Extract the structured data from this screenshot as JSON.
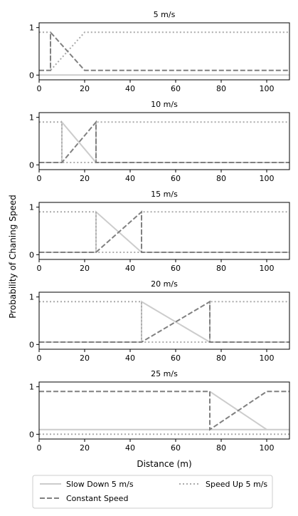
{
  "chart_data": {
    "type": "line",
    "ylabel": "Probability of Chaning Speed",
    "xlabel": "Distance (m)",
    "xlim": [
      0,
      110
    ],
    "ylim": [
      -0.1,
      1.1
    ],
    "x_ticks": [
      0,
      20,
      40,
      60,
      80,
      100
    ],
    "y_ticks": [
      0,
      1
    ],
    "grid": false,
    "legend": {
      "placement": "bottom",
      "entries": [
        {
          "label": "Slow Down 5 m/s",
          "style": "solid",
          "color": "#cccccc"
        },
        {
          "label": "Speed Up 5 m/s",
          "style": "dotted",
          "color": "#aaaaaa"
        },
        {
          "label": "Constant Speed",
          "style": "dashed",
          "color": "#808080"
        }
      ]
    },
    "panels": [
      {
        "title": "5 m/s",
        "series": [
          {
            "name": "Slow Down 5 m/s",
            "x": [
              0,
              110
            ],
            "y": [
              0,
              0
            ]
          },
          {
            "name": "Speed Up 5 m/s",
            "x": [
              0,
              5,
              5,
              20,
              110
            ],
            "y": [
              0.9,
              0.9,
              0.1,
              0.9,
              0.9
            ]
          },
          {
            "name": "Constant Speed",
            "x": [
              0,
              5,
              5,
              20,
              110
            ],
            "y": [
              0.1,
              0.1,
              0.9,
              0.1,
              0.1
            ]
          }
        ]
      },
      {
        "title": "10 m/s",
        "series": [
          {
            "name": "Slow Down 5 m/s",
            "x": [
              0,
              10,
              10,
              25,
              110
            ],
            "y": [
              0.05,
              0.05,
              0.9,
              0.05,
              0.05
            ]
          },
          {
            "name": "Speed Up 5 m/s",
            "x": [
              0,
              10,
              10,
              25,
              25,
              110
            ],
            "y": [
              0.9,
              0.9,
              0.05,
              0.05,
              0.9,
              0.9
            ]
          },
          {
            "name": "Constant Speed",
            "x": [
              0,
              10,
              25,
              25,
              110
            ],
            "y": [
              0.05,
              0.05,
              0.9,
              0.05,
              0.05
            ]
          }
        ]
      },
      {
        "title": "15 m/s",
        "series": [
          {
            "name": "Slow Down 5 m/s",
            "x": [
              0,
              25,
              25,
              45,
              110
            ],
            "y": [
              0.05,
              0.05,
              0.9,
              0.05,
              0.05
            ]
          },
          {
            "name": "Speed Up 5 m/s",
            "x": [
              0,
              25,
              25,
              45,
              45,
              110
            ],
            "y": [
              0.9,
              0.9,
              0.05,
              0.05,
              0.9,
              0.9
            ]
          },
          {
            "name": "Constant Speed",
            "x": [
              0,
              25,
              45,
              45,
              110
            ],
            "y": [
              0.05,
              0.05,
              0.9,
              0.05,
              0.05
            ]
          }
        ]
      },
      {
        "title": "20 m/s",
        "series": [
          {
            "name": "Slow Down 5 m/s",
            "x": [
              0,
              45,
              45,
              75,
              110
            ],
            "y": [
              0.05,
              0.05,
              0.9,
              0.05,
              0.05
            ]
          },
          {
            "name": "Speed Up 5 m/s",
            "x": [
              0,
              45,
              45,
              75,
              75,
              110
            ],
            "y": [
              0.9,
              0.9,
              0.05,
              0.05,
              0.9,
              0.9
            ]
          },
          {
            "name": "Constant Speed",
            "x": [
              0,
              45,
              75,
              75,
              110
            ],
            "y": [
              0.05,
              0.05,
              0.9,
              0.05,
              0.05
            ]
          }
        ]
      },
      {
        "title": "25 m/s",
        "series": [
          {
            "name": "Slow Down 5 m/s",
            "x": [
              0,
              75,
              100,
              110
            ],
            "y": [
              0.1,
              0.1,
              0.1,
              0.1
            ]
          },
          {
            "name": "Slow Down 5 m/s",
            "x": [
              75,
              100
            ],
            "y": [
              0.9,
              0.1
            ]
          },
          {
            "name": "Speed Up 5 m/s",
            "x": [
              0,
              110
            ],
            "y": [
              0,
              0
            ]
          },
          {
            "name": "Constant Speed",
            "x": [
              0,
              75,
              75,
              100,
              110
            ],
            "y": [
              0.9,
              0.9,
              0.1,
              0.9,
              0.9
            ]
          }
        ]
      }
    ]
  }
}
